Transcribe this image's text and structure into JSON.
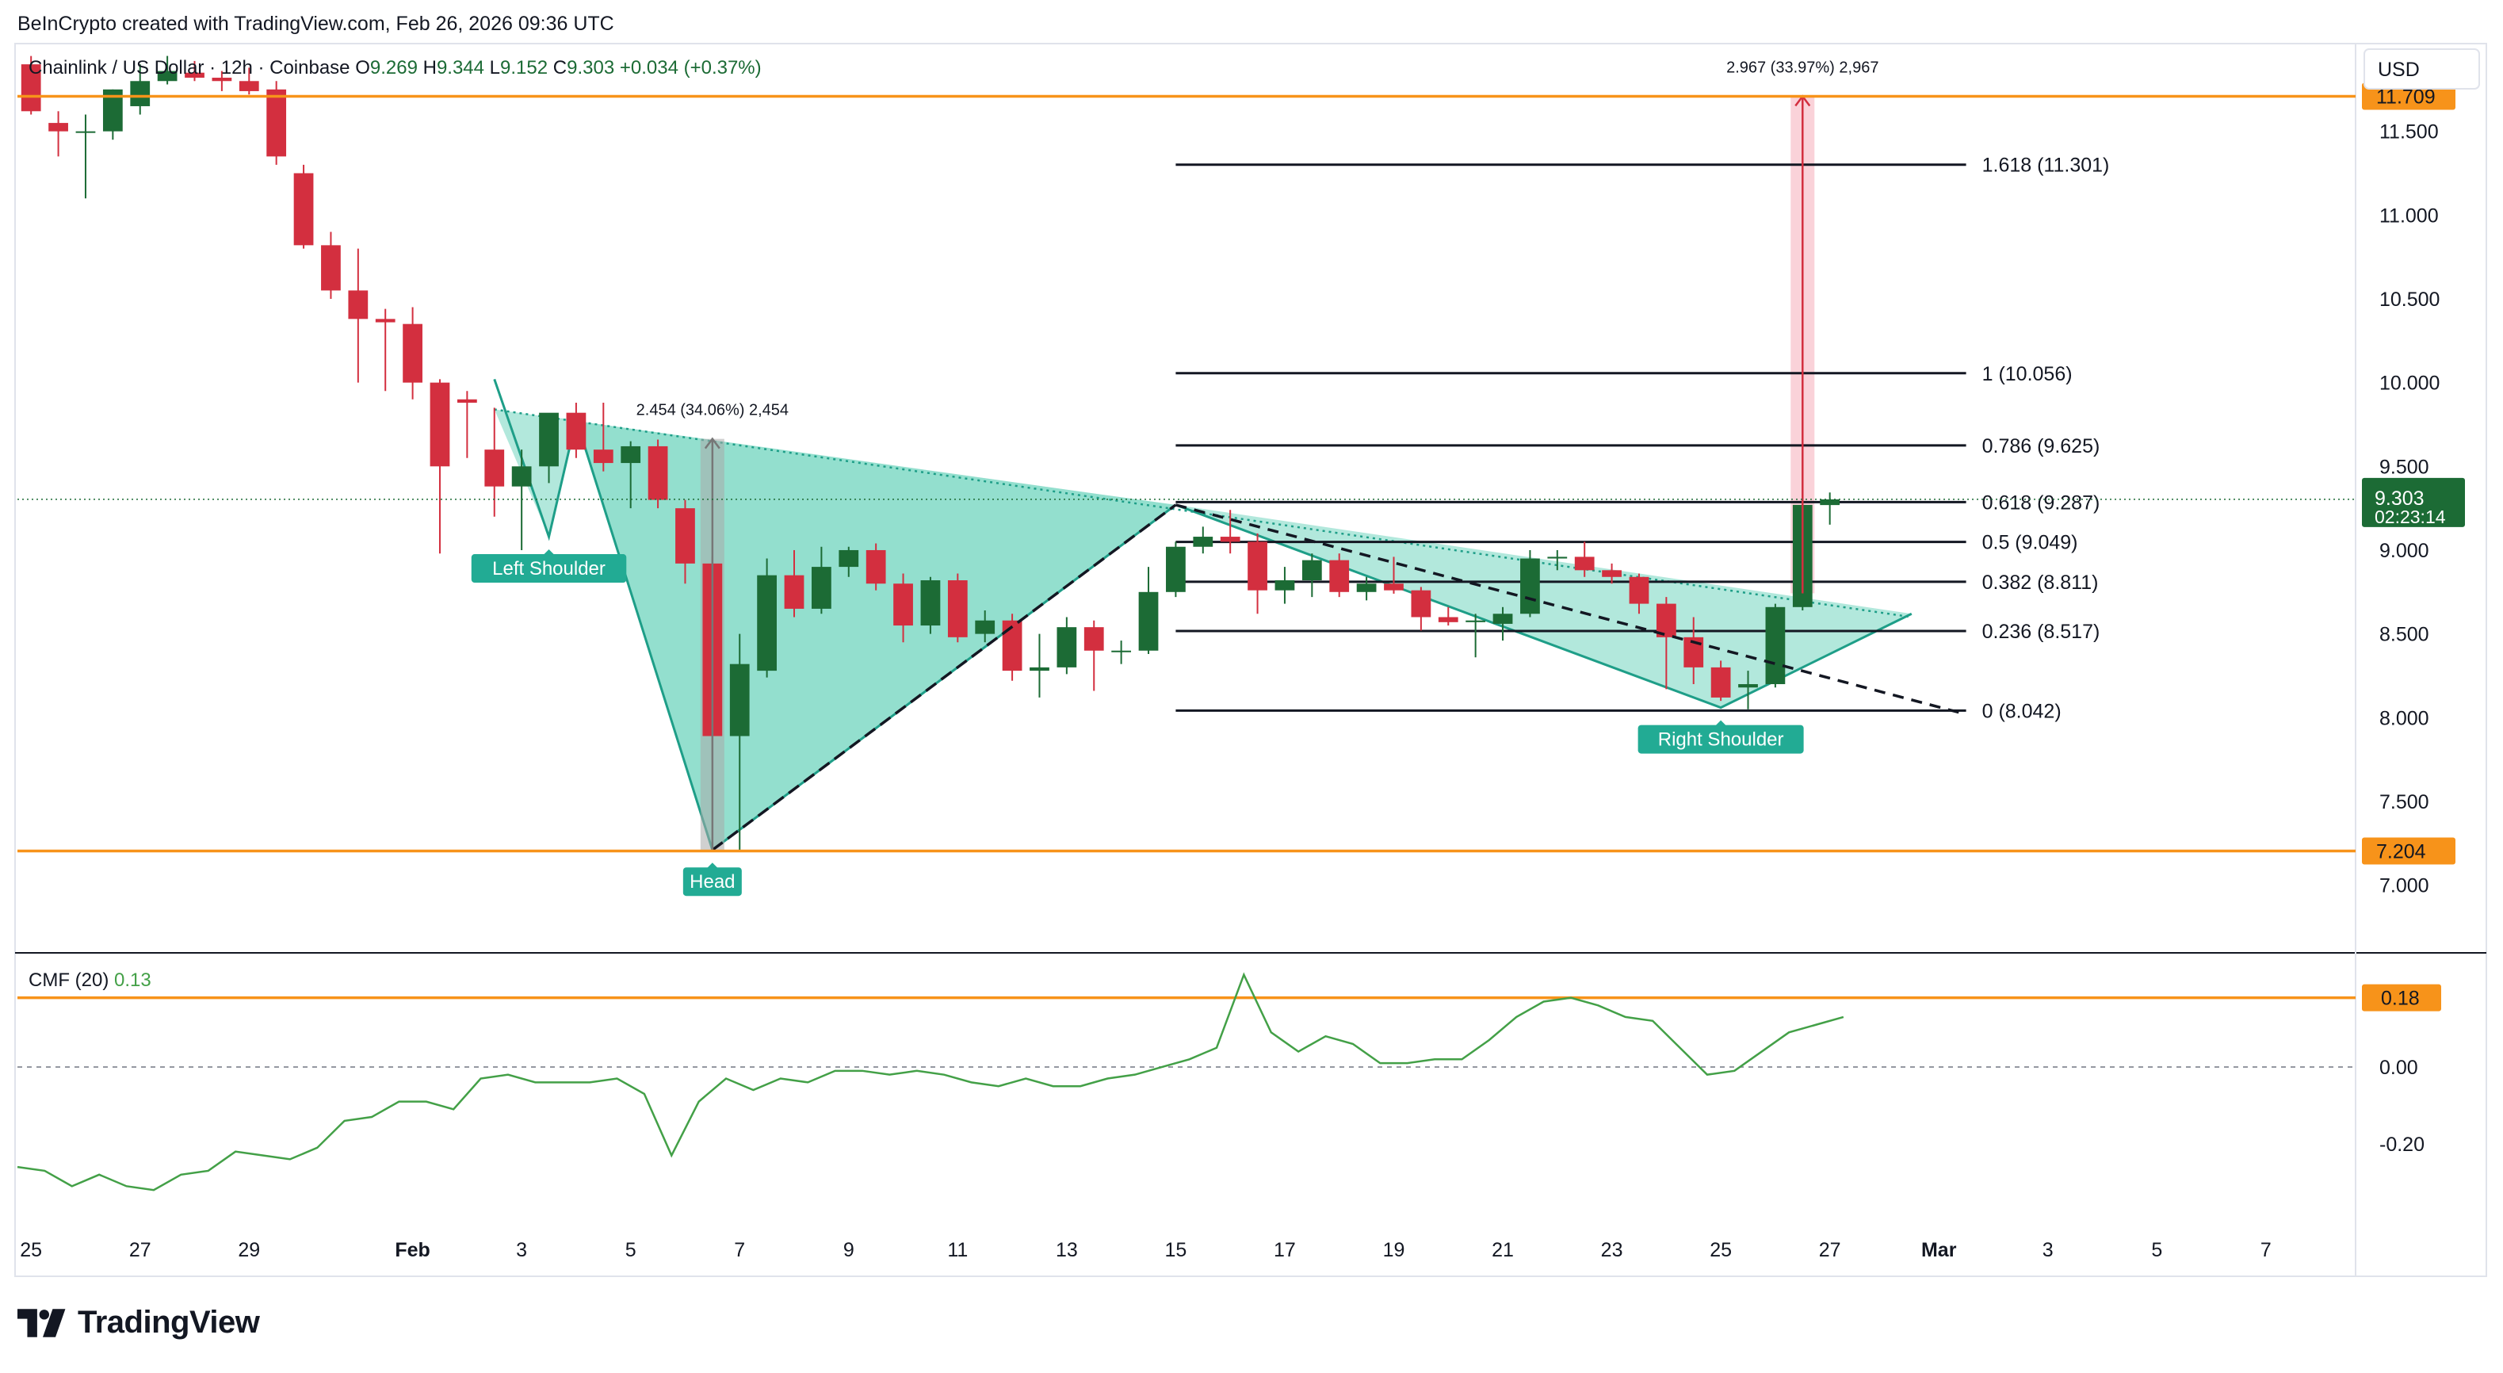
{
  "header": {
    "credit": "BeInCrypto created with TradingView.com, Feb 26, 2026 09:36 UTC"
  },
  "legend": {
    "symbol": "Chainlink / US Dollar · 12h · Coinbase",
    "o_label": "O",
    "o_value": "9.269",
    "h_label": "H",
    "h_value": "9.344",
    "l_label": "L",
    "l_value": "9.152",
    "c_label": "C",
    "c_value": "9.303",
    "change": "+0.034 (+0.37%)"
  },
  "currency_button": "USD",
  "price_label": {
    "value": "9.303",
    "countdown": "02:23:14"
  },
  "brand": {
    "name": "TradingView"
  },
  "colors": {
    "up": "#1c6b35",
    "down": "#d32f3f",
    "orange": "#f7931a",
    "teal_fill": "#7fd8c5",
    "teal_line": "#1e9e88",
    "green_label": "#22ab94",
    "cmf_line": "#43a047",
    "price_bg": "#1c6b35"
  },
  "chart_data": [
    {
      "type": "candlestick",
      "symbol": "Chainlink / US Dollar",
      "interval": "12h",
      "exchange": "Coinbase",
      "yaxis": {
        "range": [
          6.7,
          12.0
        ],
        "ticks": [
          "7.000",
          "7.500",
          "8.000",
          "8.500",
          "9.000",
          "9.500",
          "10.000",
          "10.500",
          "11.000",
          "11.500"
        ]
      },
      "xaxis": {
        "range": [
          "2026-01-24T18:00",
          "2026-03-08T12:00"
        ],
        "ticks": [
          {
            "date": "2026-01-25",
            "label": "25"
          },
          {
            "date": "2026-01-27",
            "label": "27"
          },
          {
            "date": "2026-01-29",
            "label": "29"
          },
          {
            "date": "2026-02-01",
            "label": "Feb"
          },
          {
            "date": "2026-02-03",
            "label": "3"
          },
          {
            "date": "2026-02-05",
            "label": "5"
          },
          {
            "date": "2026-02-07",
            "label": "7"
          },
          {
            "date": "2026-02-09",
            "label": "9"
          },
          {
            "date": "2026-02-11",
            "label": "11"
          },
          {
            "date": "2026-02-13",
            "label": "13"
          },
          {
            "date": "2026-02-15",
            "label": "15"
          },
          {
            "date": "2026-02-17",
            "label": "17"
          },
          {
            "date": "2026-02-19",
            "label": "19"
          },
          {
            "date": "2026-02-21",
            "label": "21"
          },
          {
            "date": "2026-02-23",
            "label": "23"
          },
          {
            "date": "2026-02-25",
            "label": "25"
          },
          {
            "date": "2026-02-27",
            "label": "27"
          },
          {
            "date": "2026-03-01",
            "label": "Mar"
          },
          {
            "date": "2026-03-03",
            "label": "3"
          },
          {
            "date": "2026-03-05",
            "label": "5"
          },
          {
            "date": "2026-03-07",
            "label": "7"
          }
        ]
      },
      "candles": [
        {
          "t": "2026-01-24T12:00",
          "o": 12.05,
          "h": 12.1,
          "l": 11.85,
          "c": 11.9
        },
        {
          "t": "2026-01-25T00:00",
          "o": 11.9,
          "h": 11.95,
          "l": 11.6,
          "c": 11.62
        },
        {
          "t": "2026-01-25T12:00",
          "o": 11.55,
          "h": 11.62,
          "l": 11.35,
          "c": 11.5
        },
        {
          "t": "2026-01-26T00:00",
          "o": 11.5,
          "h": 11.6,
          "l": 11.1,
          "c": 11.5
        },
        {
          "t": "2026-01-26T12:00",
          "o": 11.5,
          "h": 11.75,
          "l": 11.45,
          "c": 11.75
        },
        {
          "t": "2026-01-27T00:00",
          "o": 11.65,
          "h": 11.9,
          "l": 11.6,
          "c": 11.8
        },
        {
          "t": "2026-01-27T12:00",
          "o": 11.8,
          "h": 11.95,
          "l": 11.78,
          "c": 11.86
        },
        {
          "t": "2026-01-28T00:00",
          "o": 11.85,
          "h": 11.92,
          "l": 11.8,
          "c": 11.82
        },
        {
          "t": "2026-01-28T12:00",
          "o": 11.82,
          "h": 11.86,
          "l": 11.74,
          "c": 11.8
        },
        {
          "t": "2026-01-29T00:00",
          "o": 11.8,
          "h": 11.88,
          "l": 11.72,
          "c": 11.74
        },
        {
          "t": "2026-01-29T12:00",
          "o": 11.75,
          "h": 11.8,
          "l": 11.3,
          "c": 11.35
        },
        {
          "t": "2026-01-30T00:00",
          "o": 11.25,
          "h": 11.3,
          "l": 10.8,
          "c": 10.82
        },
        {
          "t": "2026-01-30T12:00",
          "o": 10.82,
          "h": 10.9,
          "l": 10.5,
          "c": 10.55
        },
        {
          "t": "2026-01-31T00:00",
          "o": 10.55,
          "h": 10.8,
          "l": 10.0,
          "c": 10.38
        },
        {
          "t": "2026-01-31T12:00",
          "o": 10.38,
          "h": 10.44,
          "l": 9.95,
          "c": 10.36
        },
        {
          "t": "2026-02-01T00:00",
          "o": 10.35,
          "h": 10.45,
          "l": 9.9,
          "c": 10.0
        },
        {
          "t": "2026-02-01T12:00",
          "o": 10.0,
          "h": 10.02,
          "l": 8.98,
          "c": 9.5
        },
        {
          "t": "2026-02-02T00:00",
          "o": 9.9,
          "h": 9.95,
          "l": 9.55,
          "c": 9.88
        },
        {
          "t": "2026-02-02T12:00",
          "o": 9.6,
          "h": 9.85,
          "l": 9.2,
          "c": 9.38
        },
        {
          "t": "2026-02-03T00:00",
          "o": 9.38,
          "h": 9.6,
          "l": 9.0,
          "c": 9.5
        },
        {
          "t": "2026-02-03T12:00",
          "o": 9.5,
          "h": 9.8,
          "l": 9.4,
          "c": 9.82
        },
        {
          "t": "2026-02-04T00:00",
          "o": 9.82,
          "h": 9.88,
          "l": 9.55,
          "c": 9.6
        },
        {
          "t": "2026-02-04T12:00",
          "o": 9.6,
          "h": 9.88,
          "l": 9.47,
          "c": 9.52
        },
        {
          "t": "2026-02-05T00:00",
          "o": 9.52,
          "h": 9.65,
          "l": 9.25,
          "c": 9.62
        },
        {
          "t": "2026-02-05T12:00",
          "o": 9.62,
          "h": 9.66,
          "l": 9.25,
          "c": 9.3
        },
        {
          "t": "2026-02-06T00:00",
          "o": 9.25,
          "h": 9.3,
          "l": 8.8,
          "c": 8.92
        },
        {
          "t": "2026-02-06T12:00",
          "o": 8.92,
          "h": 8.96,
          "l": 7.75,
          "c": 7.89
        },
        {
          "t": "2026-02-07T00:00",
          "o": 7.89,
          "h": 8.5,
          "l": 7.2,
          "c": 8.32
        },
        {
          "t": "2026-02-07T12:00",
          "o": 8.28,
          "h": 8.95,
          "l": 8.24,
          "c": 8.85
        },
        {
          "t": "2026-02-08T00:00",
          "o": 8.85,
          "h": 9.0,
          "l": 8.6,
          "c": 8.65
        },
        {
          "t": "2026-02-08T12:00",
          "o": 8.65,
          "h": 9.02,
          "l": 8.62,
          "c": 8.9
        },
        {
          "t": "2026-02-09T00:00",
          "o": 8.9,
          "h": 9.02,
          "l": 8.84,
          "c": 9.0
        },
        {
          "t": "2026-02-09T12:00",
          "o": 9.0,
          "h": 9.04,
          "l": 8.76,
          "c": 8.8
        },
        {
          "t": "2026-02-10T00:00",
          "o": 8.8,
          "h": 8.86,
          "l": 8.45,
          "c": 8.55
        },
        {
          "t": "2026-02-10T12:00",
          "o": 8.55,
          "h": 8.84,
          "l": 8.5,
          "c": 8.82
        },
        {
          "t": "2026-02-11T00:00",
          "o": 8.82,
          "h": 8.86,
          "l": 8.45,
          "c": 8.48
        },
        {
          "t": "2026-02-11T12:00",
          "o": 8.5,
          "h": 8.64,
          "l": 8.45,
          "c": 8.58
        },
        {
          "t": "2026-02-12T00:00",
          "o": 8.58,
          "h": 8.62,
          "l": 8.22,
          "c": 8.28
        },
        {
          "t": "2026-02-12T12:00",
          "o": 8.28,
          "h": 8.5,
          "l": 8.12,
          "c": 8.3
        },
        {
          "t": "2026-02-13T00:00",
          "o": 8.3,
          "h": 8.6,
          "l": 8.26,
          "c": 8.54
        },
        {
          "t": "2026-02-13T12:00",
          "o": 8.54,
          "h": 8.58,
          "l": 8.16,
          "c": 8.4
        },
        {
          "t": "2026-02-14T00:00",
          "o": 8.4,
          "h": 8.46,
          "l": 8.32,
          "c": 8.4
        },
        {
          "t": "2026-02-14T12:00",
          "o": 8.4,
          "h": 8.9,
          "l": 8.38,
          "c": 8.75
        },
        {
          "t": "2026-02-15T00:00",
          "o": 8.75,
          "h": 9.05,
          "l": 8.72,
          "c": 9.02
        },
        {
          "t": "2026-02-15T12:00",
          "o": 9.02,
          "h": 9.14,
          "l": 8.98,
          "c": 9.08
        },
        {
          "t": "2026-02-16T00:00",
          "o": 9.08,
          "h": 9.24,
          "l": 8.98,
          "c": 9.05
        },
        {
          "t": "2026-02-16T12:00",
          "o": 9.05,
          "h": 9.1,
          "l": 8.62,
          "c": 8.76
        },
        {
          "t": "2026-02-17T00:00",
          "o": 8.76,
          "h": 8.9,
          "l": 8.68,
          "c": 8.82
        },
        {
          "t": "2026-02-17T12:00",
          "o": 8.82,
          "h": 8.98,
          "l": 8.72,
          "c": 8.94
        },
        {
          "t": "2026-02-18T00:00",
          "o": 8.94,
          "h": 8.98,
          "l": 8.72,
          "c": 8.75
        },
        {
          "t": "2026-02-18T12:00",
          "o": 8.75,
          "h": 8.84,
          "l": 8.7,
          "c": 8.8
        },
        {
          "t": "2026-02-19T00:00",
          "o": 8.8,
          "h": 8.96,
          "l": 8.74,
          "c": 8.76
        },
        {
          "t": "2026-02-19T12:00",
          "o": 8.76,
          "h": 8.78,
          "l": 8.52,
          "c": 8.6
        },
        {
          "t": "2026-02-20T00:00",
          "o": 8.6,
          "h": 8.66,
          "l": 8.55,
          "c": 8.57
        },
        {
          "t": "2026-02-20T12:00",
          "o": 8.57,
          "h": 8.62,
          "l": 8.36,
          "c": 8.58
        },
        {
          "t": "2026-02-21T00:00",
          "o": 8.56,
          "h": 8.66,
          "l": 8.46,
          "c": 8.62
        },
        {
          "t": "2026-02-21T12:00",
          "o": 8.62,
          "h": 9.0,
          "l": 8.6,
          "c": 8.95
        },
        {
          "t": "2026-02-22T00:00",
          "o": 8.95,
          "h": 9.0,
          "l": 8.88,
          "c": 8.96
        },
        {
          "t": "2026-02-22T12:00",
          "o": 8.96,
          "h": 9.05,
          "l": 8.84,
          "c": 8.88
        },
        {
          "t": "2026-02-23T00:00",
          "o": 8.88,
          "h": 8.92,
          "l": 8.8,
          "c": 8.84
        },
        {
          "t": "2026-02-23T12:00",
          "o": 8.84,
          "h": 8.86,
          "l": 8.62,
          "c": 8.68
        },
        {
          "t": "2026-02-24T00:00",
          "o": 8.68,
          "h": 8.72,
          "l": 8.17,
          "c": 8.48
        },
        {
          "t": "2026-02-24T12:00",
          "o": 8.48,
          "h": 8.6,
          "l": 8.2,
          "c": 8.3
        },
        {
          "t": "2026-02-25T00:00",
          "o": 8.3,
          "h": 8.34,
          "l": 8.1,
          "c": 8.12
        },
        {
          "t": "2026-02-25T12:00",
          "o": 8.18,
          "h": 8.28,
          "l": 8.05,
          "c": 8.2
        },
        {
          "t": "2026-02-26T00:00",
          "o": 8.2,
          "h": 8.68,
          "l": 8.18,
          "c": 8.66
        },
        {
          "t": "2026-02-26T12:00",
          "o": 8.66,
          "h": 9.58,
          "l": 8.64,
          "c": 9.27
        },
        {
          "t": "2026-02-27T00:00",
          "o": 9.269,
          "h": 9.344,
          "l": 9.152,
          "c": 9.303
        }
      ],
      "horizontal_levels": [
        {
          "name": "resistance",
          "value": 11.709,
          "label": "11.709",
          "color": "#f7931a"
        },
        {
          "name": "support",
          "value": 7.204,
          "label": "7.204",
          "color": "#f7931a"
        }
      ],
      "fibonacci": {
        "range": [
          "2026-02-15T00:00",
          "2026-03-01T12:00"
        ],
        "levels": [
          {
            "ratio": "1.618",
            "value": 11.301,
            "label": "1.618 (11.301)"
          },
          {
            "ratio": "1",
            "value": 10.056,
            "label": "1 (10.056)"
          },
          {
            "ratio": "0.786",
            "value": 9.625,
            "label": "0.786 (9.625)"
          },
          {
            "ratio": "0.618",
            "value": 9.287,
            "label": "0.618 (9.287)"
          },
          {
            "ratio": "0.5",
            "value": 9.049,
            "label": "0.5 (9.049)"
          },
          {
            "ratio": "0.382",
            "value": 8.811,
            "label": "0.382 (8.811)"
          },
          {
            "ratio": "0.236",
            "value": 8.517,
            "label": "0.236 (8.517)"
          },
          {
            "ratio": "0",
            "value": 8.042,
            "label": "0 (8.042)"
          }
        ]
      },
      "pattern": {
        "type": "inverse head and shoulders",
        "left_points": [
          {
            "t": "2026-02-02T12:00",
            "v": 10.02
          },
          {
            "t": "2026-02-03T12:00",
            "v": 9.08
          },
          {
            "t": "2026-02-04T00:00",
            "v": 9.78
          },
          {
            "t": "2026-02-06T12:00",
            "v": 7.21
          },
          {
            "t": "2026-02-15T00:00",
            "v": 9.27
          }
        ],
        "right_points": [
          {
            "t": "2026-02-15T00:00",
            "v": 9.27
          },
          {
            "t": "2026-02-25T00:00",
            "v": 8.06
          },
          {
            "t": "2026-02-28T12:00",
            "v": 8.62
          }
        ],
        "neckline": {
          "from": {
            "t": "2026-02-02T12:00",
            "v": 9.84
          },
          "to": {
            "t": "2026-02-28T12:00",
            "v": 8.6
          }
        },
        "trend_head": {
          "from": {
            "t": "2026-02-06T12:00",
            "v": 7.21
          },
          "to": {
            "t": "2026-02-15T00:00",
            "v": 9.27
          }
        },
        "trend_descending": {
          "from": {
            "t": "2026-02-15T00:00",
            "v": 9.27
          },
          "to": {
            "t": "2026-03-01T12:00",
            "v": 8.02
          }
        },
        "labels": [
          {
            "text": "Left Shoulder",
            "t": "2026-02-03T12:00",
            "v": 9.08,
            "pos": "below"
          },
          {
            "text": "Head",
            "t": "2026-02-06T12:00",
            "v": 7.21,
            "pos": "below"
          },
          {
            "text": "Right Shoulder",
            "t": "2026-02-25T00:00",
            "v": 8.06,
            "pos": "below"
          }
        ]
      },
      "measurements": [
        {
          "t": "2026-02-06T12:00",
          "from": 7.21,
          "to": 9.664,
          "label": "2.454 (34.06%) 2,454"
        },
        {
          "t": "2026-02-26T12:00",
          "from": 8.742,
          "to": 11.709,
          "label": "2.967 (33.97%) 2,967"
        }
      ],
      "last_price": 9.303
    },
    {
      "type": "line",
      "name": "CMF (20)",
      "title": "CMF (20)",
      "current_value": "0.13",
      "yaxis": {
        "range": [
          -0.4,
          0.27
        ],
        "ticks": [
          "-0.20",
          "0.00",
          "0.18"
        ]
      },
      "level": {
        "value": 0.18,
        "label": "0.18"
      },
      "x": [
        "2026-01-24T18:00",
        "2026-01-25T06:00",
        "2026-01-25T18:00",
        "2026-01-26T06:00",
        "2026-01-26T18:00",
        "2026-01-27T06:00",
        "2026-01-27T18:00",
        "2026-01-28T06:00",
        "2026-01-28T18:00",
        "2026-01-29T06:00",
        "2026-01-29T18:00",
        "2026-01-30T06:00",
        "2026-01-30T18:00",
        "2026-01-31T06:00",
        "2026-01-31T18:00",
        "2026-02-01T06:00",
        "2026-02-01T18:00",
        "2026-02-02T06:00",
        "2026-02-02T18:00",
        "2026-02-03T06:00",
        "2026-02-03T18:00",
        "2026-02-04T06:00",
        "2026-02-04T18:00",
        "2026-02-05T06:00",
        "2026-02-05T18:00",
        "2026-02-06T06:00",
        "2026-02-06T18:00",
        "2026-02-07T06:00",
        "2026-02-07T18:00",
        "2026-02-08T06:00",
        "2026-02-08T18:00",
        "2026-02-09T06:00",
        "2026-02-09T18:00",
        "2026-02-10T06:00",
        "2026-02-10T18:00",
        "2026-02-11T06:00",
        "2026-02-11T18:00",
        "2026-02-12T06:00",
        "2026-02-12T18:00",
        "2026-02-13T06:00",
        "2026-02-13T18:00",
        "2026-02-14T06:00",
        "2026-02-14T18:00",
        "2026-02-15T06:00",
        "2026-02-15T18:00",
        "2026-02-16T06:00",
        "2026-02-16T18:00",
        "2026-02-17T06:00",
        "2026-02-17T18:00",
        "2026-02-18T06:00",
        "2026-02-18T18:00",
        "2026-02-19T06:00",
        "2026-02-19T18:00",
        "2026-02-20T06:00",
        "2026-02-20T18:00",
        "2026-02-21T06:00",
        "2026-02-21T18:00",
        "2026-02-22T06:00",
        "2026-02-22T18:00",
        "2026-02-23T06:00",
        "2026-02-23T18:00",
        "2026-02-24T06:00",
        "2026-02-24T18:00",
        "2026-02-25T06:00",
        "2026-02-25T18:00",
        "2026-02-26T06:00",
        "2026-02-26T18:00",
        "2026-02-27T06:00"
      ],
      "values": [
        -0.26,
        -0.27,
        -0.31,
        -0.28,
        -0.31,
        -0.32,
        -0.28,
        -0.27,
        -0.22,
        -0.23,
        -0.24,
        -0.21,
        -0.14,
        -0.13,
        -0.09,
        -0.09,
        -0.11,
        -0.03,
        -0.02,
        -0.04,
        -0.04,
        -0.04,
        -0.03,
        -0.07,
        -0.23,
        -0.09,
        -0.03,
        -0.06,
        -0.03,
        -0.04,
        -0.01,
        -0.01,
        -0.02,
        -0.01,
        -0.02,
        -0.04,
        -0.05,
        -0.03,
        -0.05,
        -0.05,
        -0.03,
        -0.02,
        0.0,
        0.02,
        0.05,
        0.24,
        0.09,
        0.04,
        0.08,
        0.06,
        0.01,
        0.01,
        0.02,
        0.02,
        0.07,
        0.13,
        0.17,
        0.18,
        0.16,
        0.13,
        0.12,
        0.05,
        -0.02,
        -0.01,
        0.04,
        0.09,
        0.11,
        0.13
      ]
    }
  ]
}
